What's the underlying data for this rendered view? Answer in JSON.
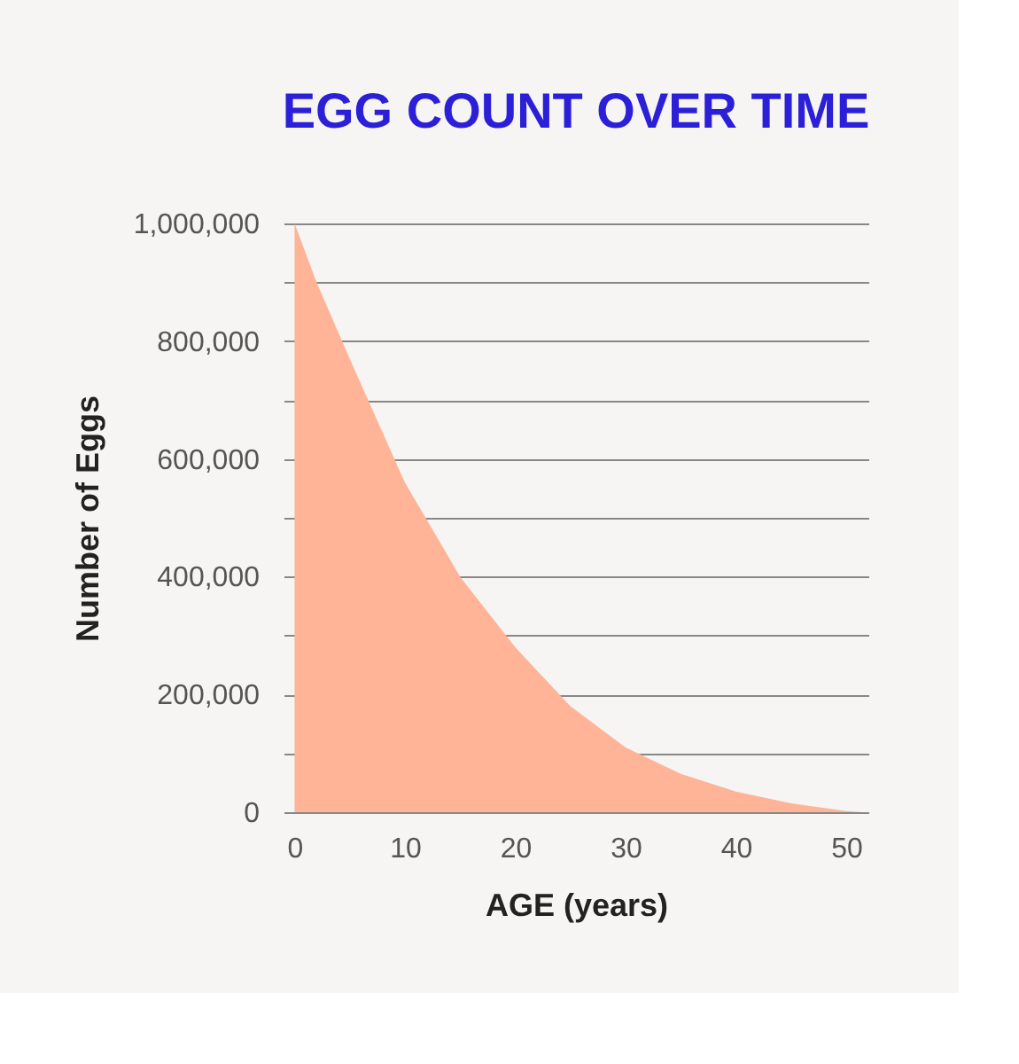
{
  "chart_data": {
    "type": "area",
    "title": "EGG COUNT OVER TIME",
    "xlabel": "AGE (years)",
    "ylabel": "Number of Eggs",
    "x": [
      0,
      2,
      5,
      10,
      15,
      20,
      25,
      30,
      35,
      40,
      45,
      50,
      51.5
    ],
    "series": [
      {
        "color": "#ffb497",
        "values": [
          1000000,
          900000,
          770000,
          560000,
          400000,
          280000,
          180000,
          110000,
          65000,
          35000,
          15000,
          2000,
          0
        ]
      }
    ],
    "xlim": [
      -1,
      52
    ],
    "xticks": [
      0,
      10,
      20,
      30,
      40,
      50
    ],
    "ylim": [
      0,
      1000000
    ],
    "yticks": [
      0,
      {
        "value": 100000,
        "label": null
      },
      {
        "value": 200000,
        "label": "200,000"
      },
      {
        "value": 300000,
        "label": null
      },
      {
        "value": 400000,
        "label": "400,000"
      },
      {
        "value": 500000,
        "label": null
      },
      {
        "value": 600000,
        "label": "600,000"
      },
      {
        "value": 700000,
        "label": null
      },
      {
        "value": 800000,
        "label": "800,000"
      },
      {
        "value": 900000,
        "label": null
      },
      {
        "value": 1000000,
        "label": "1,000,000"
      }
    ],
    "grid": "y"
  }
}
